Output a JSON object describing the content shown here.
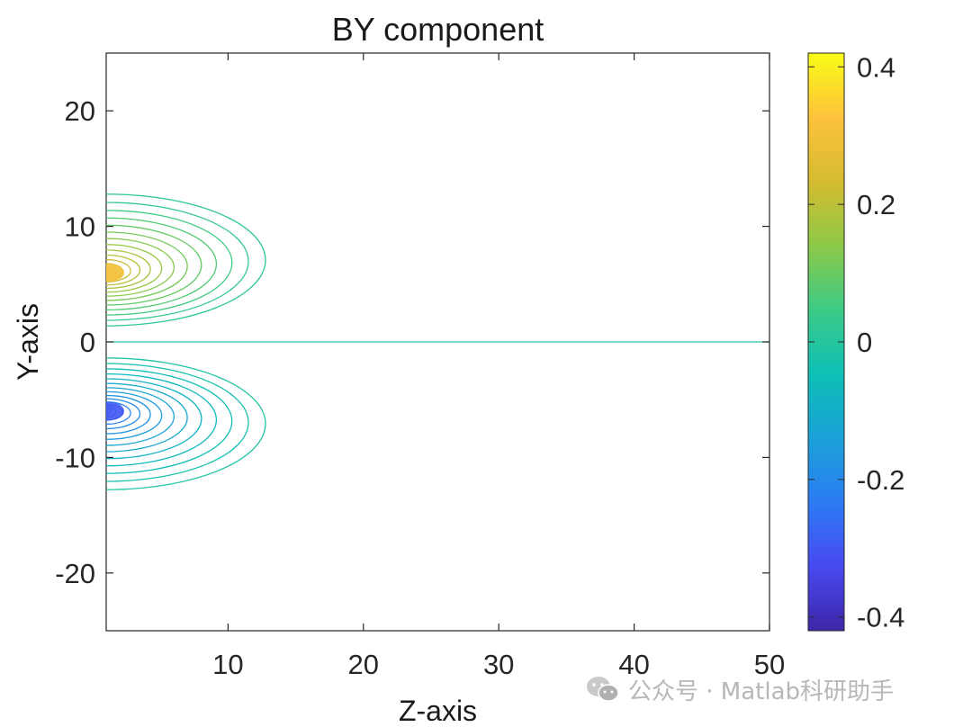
{
  "chart_data": {
    "type": "contour",
    "title": "BY component",
    "xlabel": "Z-axis",
    "ylabel": "Y-axis",
    "xlim": [
      1,
      50
    ],
    "ylim": [
      -25,
      25
    ],
    "xticks": [
      10,
      20,
      30,
      40,
      50
    ],
    "yticks": [
      -20,
      -10,
      0,
      10,
      20
    ],
    "colorbar": {
      "limits": [
        -0.42,
        0.42
      ],
      "ticks": [
        -0.4,
        -0.2,
        0,
        0.2,
        0.4
      ],
      "tick_labels": [
        "-0.4",
        "-0.2",
        "0",
        "0.2",
        "0.4"
      ],
      "colormap": "parula",
      "colors": [
        "#3e26a8",
        "#4849f0",
        "#2c7cf4",
        "#1aa2d8",
        "#0ebfb6",
        "#3ccb86",
        "#8dc948",
        "#d5bb30",
        "#fdc33c",
        "#f9fb15"
      ]
    },
    "sources": [
      {
        "z": 1,
        "y": 6,
        "sign": 1,
        "peak_value": 0.3
      },
      {
        "z": 1,
        "y": -6,
        "sign": -1,
        "peak_value": -0.3
      }
    ],
    "contour_levels": [
      0,
      0.01,
      0.03,
      0.05,
      0.07,
      0.09,
      0.11,
      0.13,
      0.15,
      0.17,
      0.19,
      0.21,
      0.23,
      0.25,
      0.27,
      0.29
    ],
    "zero_contour": "y = 0",
    "grid": false,
    "legend": "none"
  },
  "watermark": {
    "text": "公众号 · Matlab科研助手",
    "icon": "wechat-icon"
  }
}
